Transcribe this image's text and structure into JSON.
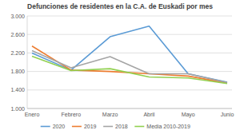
{
  "chart_data": {
    "type": "line",
    "title": "Defunciones de residentes en la C.A. de Euskadi por mes",
    "categories": [
      "Enero",
      "Febrero",
      "Marzo",
      "Abril",
      "Mayo",
      "Junio"
    ],
    "series": [
      {
        "name": "2020",
        "color": "#5b9bd5",
        "values": [
          2200,
          1830,
          2550,
          2780,
          1750,
          1570
        ]
      },
      {
        "name": "2019",
        "color": "#ed7d31",
        "values": [
          2350,
          1830,
          1800,
          1750,
          1700,
          1550
        ]
      },
      {
        "name": "2018",
        "color": "#a5a5a5",
        "values": [
          2250,
          1880,
          2120,
          1750,
          1750,
          1560
        ]
      },
      {
        "name": "Media 2010-2019",
        "color": "#92d050",
        "values": [
          2130,
          1820,
          1860,
          1680,
          1660,
          1540
        ]
      }
    ],
    "ylim": [
      1000,
      3000
    ],
    "yticks": [
      {
        "value": 1000,
        "label": "1.000"
      },
      {
        "value": 1400,
        "label": "1.400"
      },
      {
        "value": 1800,
        "label": "1.800"
      },
      {
        "value": 2200,
        "label": "2.200"
      },
      {
        "value": 2600,
        "label": "2.600"
      },
      {
        "value": 3000,
        "label": "3.000"
      }
    ],
    "grid": true,
    "legend": "bottom"
  }
}
